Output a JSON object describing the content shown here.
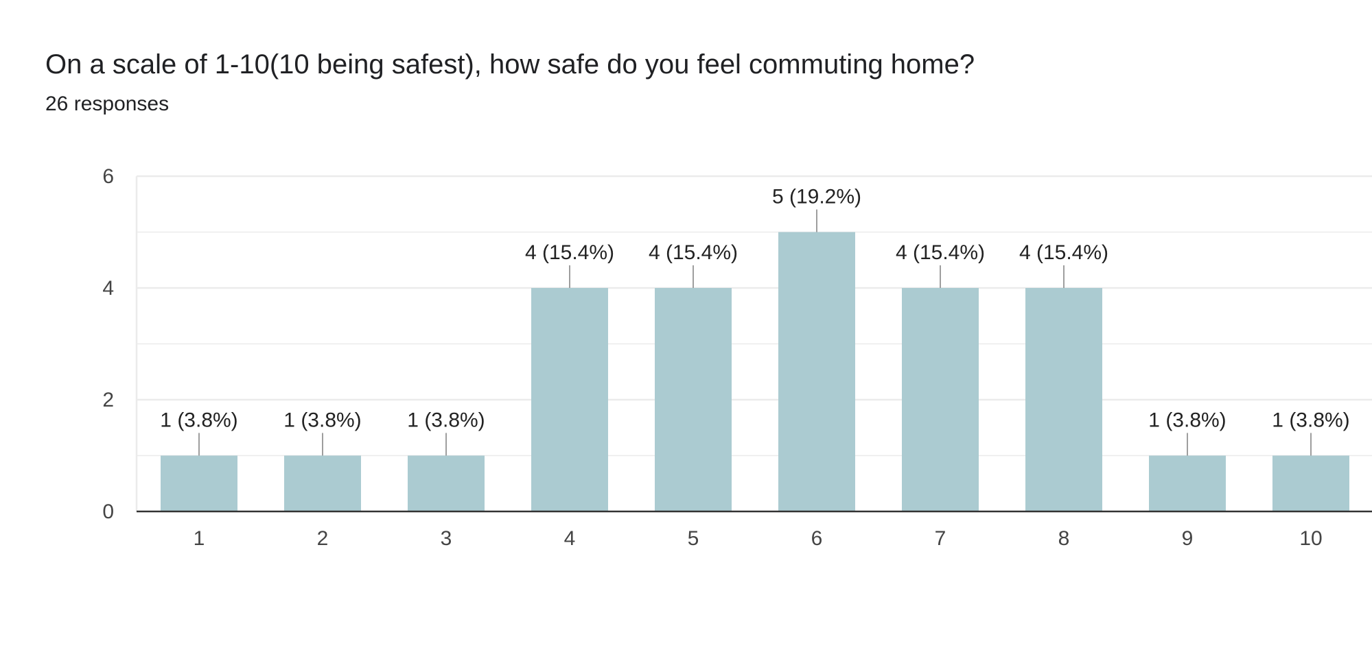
{
  "header": {
    "title": "On a scale of 1-10(10 being safest), how safe do you feel commuting home?",
    "responses": "26 responses"
  },
  "colors": {
    "bar": "#abcbd1",
    "grid": "#ebebeb",
    "axis": "#333333",
    "leader": "#9e9e9e"
  },
  "chart_data": {
    "type": "bar",
    "title": "On a scale of 1-10(10 being safest), how safe do you feel commuting home?",
    "xlabel": "",
    "ylabel": "",
    "categories": [
      "1",
      "2",
      "3",
      "4",
      "5",
      "6",
      "7",
      "8",
      "9",
      "10"
    ],
    "values": [
      1,
      1,
      1,
      4,
      4,
      5,
      4,
      4,
      1,
      1
    ],
    "data_labels": [
      "1 (3.8%)",
      "1 (3.8%)",
      "1 (3.8%)",
      "4 (15.4%)",
      "4 (15.4%)",
      "5 (19.2%)",
      "4 (15.4%)",
      "4 (15.4%)",
      "1 (3.8%)",
      "1 (3.8%)"
    ],
    "y_ticks": [
      "0",
      "2",
      "4",
      "6"
    ],
    "ylim": [
      0,
      6
    ],
    "grid": true,
    "legend": "none"
  }
}
